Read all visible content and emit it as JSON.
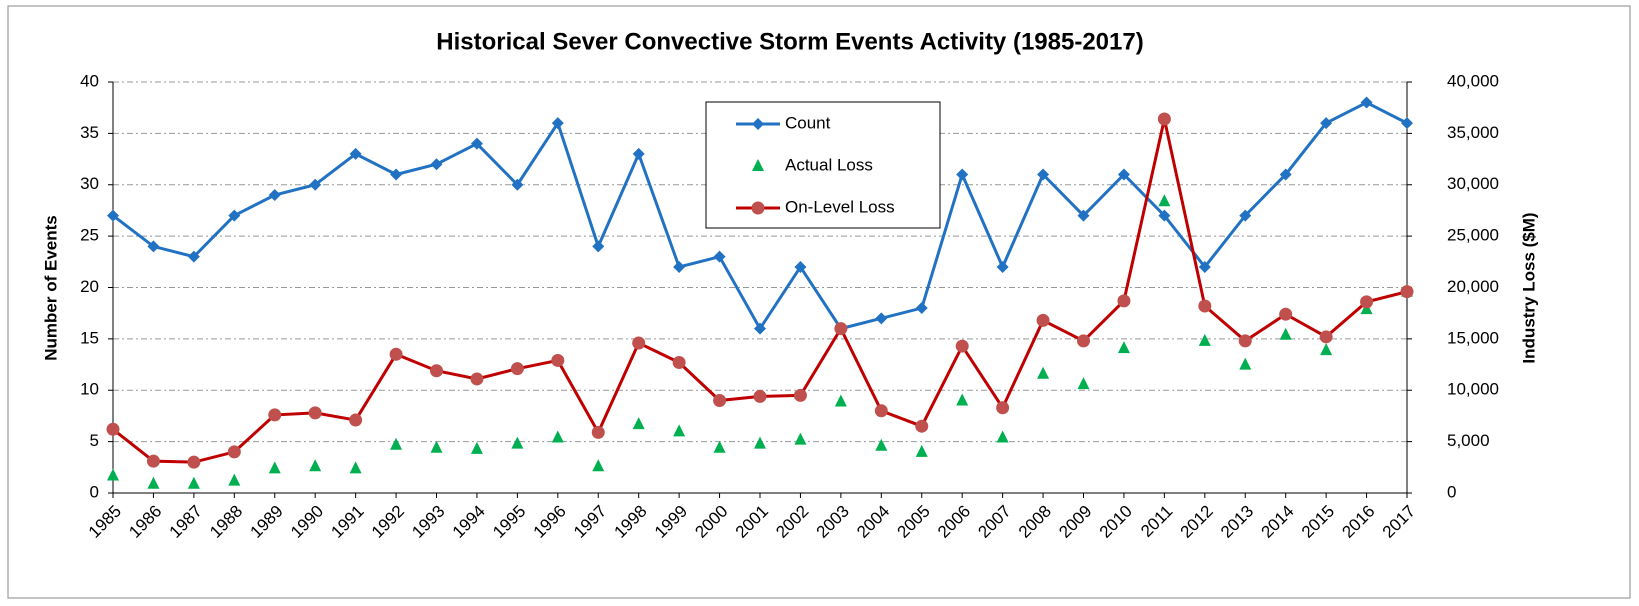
{
  "chart_data": {
    "type": "line",
    "title": "Historical Sever Convective Storm Events Activity (1985-2017)",
    "ylabel": "Number of Events",
    "y2label": "Industry Loss ($M)",
    "categories": [
      "1985",
      "1986",
      "1987",
      "1988",
      "1989",
      "1990",
      "1991",
      "1992",
      "1993",
      "1994",
      "1995",
      "1996",
      "1997",
      "1998",
      "1999",
      "2000",
      "2001",
      "2002",
      "2003",
      "2004",
      "2005",
      "2006",
      "2007",
      "2008",
      "2009",
      "2010",
      "2011",
      "2012",
      "2013",
      "2014",
      "2015",
      "2016",
      "2017"
    ],
    "series": [
      {
        "name": "Count",
        "color": "#2272c3",
        "marker": "diamond",
        "line": true,
        "values": [
          27,
          24,
          23,
          27,
          29,
          30,
          33,
          31,
          32,
          34,
          30,
          36,
          24,
          33,
          22,
          23,
          16,
          22,
          16,
          17,
          18,
          31,
          22,
          31,
          27,
          31,
          27,
          22,
          27,
          31,
          36,
          38,
          36
        ]
      },
      {
        "name": "Actual Loss",
        "color": "#00b050",
        "marker": "triangle",
        "line": false,
        "axis": "y2",
        "values": [
          1700,
          900,
          900,
          1200,
          2400,
          2600,
          2400,
          4700,
          4400,
          4300,
          4800,
          5400,
          2600,
          6700,
          6000,
          4400,
          4800,
          5200,
          8900,
          4600,
          4000,
          9000,
          5400,
          11600,
          10600,
          14100,
          28400,
          14800,
          12500,
          15400,
          13900,
          17900,
          19600
        ]
      },
      {
        "name": "On-Level Loss",
        "color": "#c00000",
        "marker": "circle",
        "marker_color": "#c0504d",
        "line": true,
        "axis": "y2",
        "values": [
          6200,
          3100,
          3000,
          4000,
          7600,
          7800,
          7100,
          13500,
          11900,
          11100,
          12100,
          12900,
          5900,
          14600,
          12700,
          9000,
          9400,
          9500,
          16000,
          8000,
          6500,
          14300,
          8300,
          16800,
          14800,
          18700,
          36400,
          18200,
          14800,
          17400,
          15200,
          18600,
          19600
        ]
      }
    ],
    "ylim": [
      0,
      40
    ],
    "yticks": [
      0,
      5,
      10,
      15,
      20,
      25,
      30,
      35,
      40
    ],
    "y2lim": [
      0,
      40000
    ],
    "y2ticks": [
      0,
      {
        "value": 5000,
        "label": "5,000"
      },
      {
        "value": 10000,
        "label": "10,000"
      },
      {
        "value": 15000,
        "label": "15,000"
      },
      {
        "value": 20000,
        "label": "20,000"
      },
      {
        "value": 25000,
        "label": "25,000"
      },
      {
        "value": 30000,
        "label": "30,000"
      },
      {
        "value": 35000,
        "label": "35,000"
      },
      {
        "value": 40000,
        "label": "40,000"
      }
    ],
    "grid": true
  }
}
